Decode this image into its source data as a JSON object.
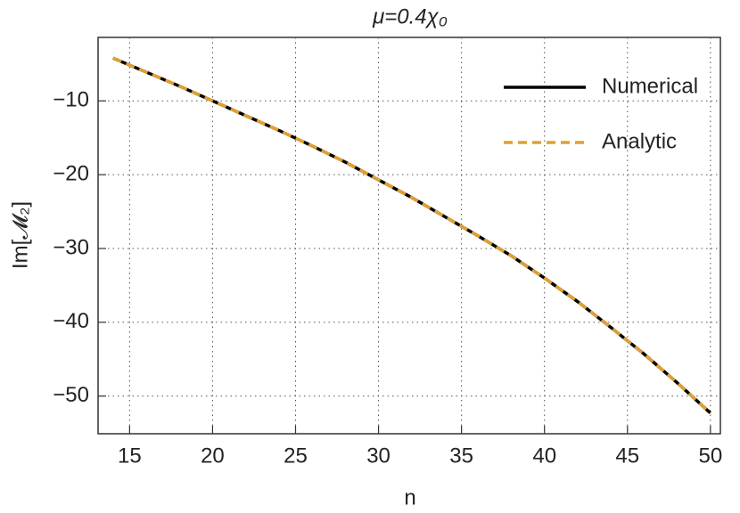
{
  "chart_data": {
    "type": "line",
    "title": "μ=0.4χ₀",
    "x_label": "n",
    "y_label": "Im[𝓜₂]",
    "x": [
      14,
      16,
      18,
      20,
      22,
      24,
      26,
      28,
      30,
      32,
      34,
      36,
      38,
      40,
      42,
      44,
      46,
      48,
      50
    ],
    "series": [
      {
        "name": "Numerical",
        "color": "#000000",
        "dashed": false,
        "values": [
          -4.2,
          -6.1,
          -8.0,
          -10.0,
          -12.0,
          -14.0,
          -16.1,
          -18.3,
          -20.7,
          -23.1,
          -25.7,
          -28.3,
          -31.0,
          -34.0,
          -37.2,
          -40.7,
          -44.3,
          -48.2,
          -52.3
        ]
      },
      {
        "name": "Analytic",
        "color": "#e0a030",
        "dashed": true,
        "values": [
          -4.2,
          -6.1,
          -8.0,
          -10.0,
          -12.0,
          -14.0,
          -16.1,
          -18.3,
          -20.7,
          -23.1,
          -25.7,
          -28.3,
          -31.0,
          -34.0,
          -37.2,
          -40.7,
          -44.3,
          -48.2,
          -52.3
        ]
      }
    ],
    "xlim": [
      13.1,
      50.6
    ],
    "ylim": [
      -55.1,
      -1.4
    ],
    "xticks": [
      15,
      20,
      25,
      30,
      35,
      40,
      45,
      50
    ],
    "yticks": [
      {
        "value": -10,
        "label": "−10"
      },
      {
        "value": -20,
        "label": "−20"
      },
      {
        "value": -30,
        "label": "−30"
      },
      {
        "value": -40,
        "label": "−40"
      },
      {
        "value": -50,
        "label": "−50"
      }
    ],
    "grid": true,
    "legend": "top-right"
  }
}
